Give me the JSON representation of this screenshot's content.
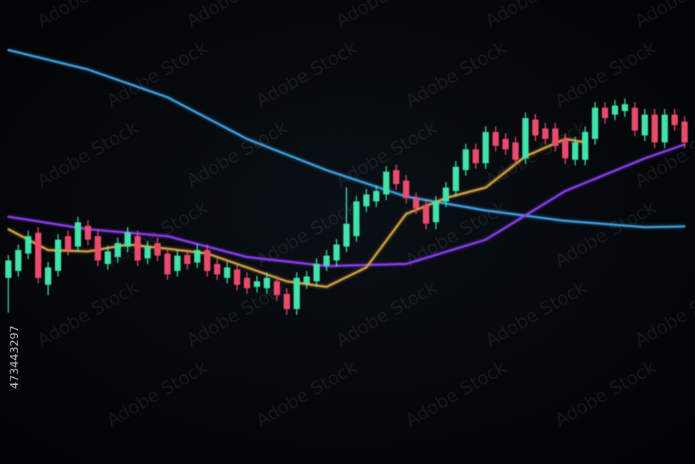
{
  "chart_data": {
    "type": "candlestick",
    "ylim": [
      0,
      668
    ],
    "up_color": "#3fe3a9",
    "down_color": "#ea4b6c",
    "open": [
      268,
      278,
      303,
      333,
      258,
      278,
      328,
      313,
      343,
      328,
      288,
      298,
      313,
      328,
      296,
      318,
      303,
      278,
      301,
      290,
      308,
      288,
      268,
      280,
      268,
      255,
      253,
      263,
      245,
      223,
      260,
      263,
      286,
      293,
      313,
      328,
      371,
      378,
      388,
      423,
      408,
      383,
      373,
      348,
      378,
      393,
      423,
      453,
      433,
      478,
      468,
      463,
      440,
      496,
      483,
      483,
      468,
      438,
      438,
      468,
      513,
      503,
      508,
      513,
      473,
      503,
      463,
      503,
      493
    ],
    "high": [
      301,
      316,
      336,
      341,
      291,
      331,
      336,
      356,
      351,
      336,
      314,
      326,
      341,
      336,
      321,
      326,
      311,
      308,
      309,
      316,
      316,
      296,
      291,
      288,
      276,
      271,
      276,
      271,
      253,
      276,
      278,
      296,
      308,
      324,
      398,
      386,
      396,
      401,
      429,
      431,
      416,
      391,
      381,
      386,
      406,
      436,
      461,
      461,
      486,
      486,
      476,
      471,
      506,
      504,
      491,
      491,
      476,
      471,
      486,
      521,
      521,
      524,
      526,
      521,
      511,
      511,
      511,
      511,
      501
    ],
    "low": [
      218,
      270,
      295,
      260,
      243,
      270,
      300,
      305,
      315,
      285,
      280,
      290,
      305,
      285,
      288,
      292,
      265,
      270,
      280,
      282,
      270,
      265,
      260,
      250,
      245,
      247,
      245,
      235,
      215,
      215,
      252,
      255,
      278,
      285,
      305,
      320,
      363,
      370,
      380,
      395,
      375,
      360,
      338,
      338,
      370,
      385,
      415,
      425,
      425,
      450,
      445,
      430,
      432,
      465,
      460,
      450,
      432,
      430,
      430,
      460,
      490,
      495,
      500,
      472,
      465,
      455,
      455,
      480,
      455
    ],
    "close": [
      293,
      308,
      328,
      268,
      283,
      323,
      308,
      348,
      323,
      293,
      306,
      318,
      333,
      293,
      313,
      300,
      273,
      300,
      288,
      308,
      278,
      273,
      283,
      258,
      253,
      263,
      268,
      243,
      223,
      268,
      270,
      288,
      300,
      316,
      346,
      378,
      388,
      393,
      421,
      403,
      383,
      368,
      346,
      378,
      398,
      428,
      453,
      433,
      478,
      458,
      453,
      438,
      498,
      473,
      468,
      458,
      440,
      463,
      478,
      513,
      498,
      516,
      518,
      480,
      503,
      463,
      503,
      488,
      463
    ],
    "lines": [
      {
        "color": "#3ba2e6",
        "x": [
          0,
          8,
          16,
          24,
          32,
          40,
          48,
          56,
          64,
          68
        ],
        "values": [
          596,
          568,
          528,
          468,
          423,
          385,
          365,
          350,
          341,
          342
        ]
      },
      {
        "color": "#8b3df2",
        "x": [
          0,
          8,
          16,
          24,
          32,
          40,
          48,
          56,
          64,
          68
        ],
        "values": [
          356,
          338,
          328,
          298,
          285,
          288,
          323,
          393,
          440,
          460
        ]
      },
      {
        "color": "#d9a040",
        "x": [
          0,
          4,
          8,
          12,
          16,
          20,
          24,
          28,
          32,
          36,
          40,
          44,
          48,
          52,
          56,
          58
        ],
        "values": [
          338,
          308,
          306,
          316,
          310,
          303,
          283,
          263,
          255,
          283,
          360,
          383,
          398,
          443,
          468,
          463
        ]
      }
    ]
  },
  "watermark": "Adobe Stock",
  "stock_id": "473443297"
}
